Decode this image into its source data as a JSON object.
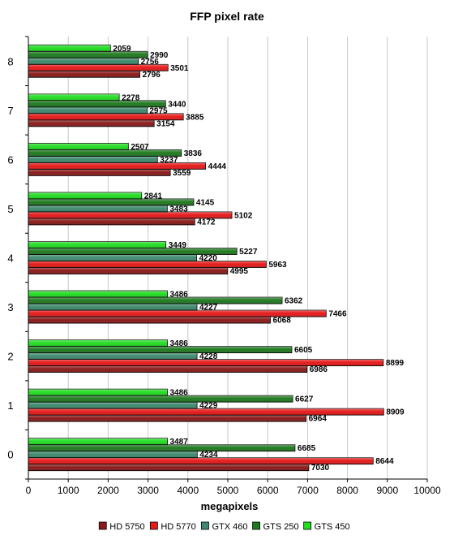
{
  "chart_data": {
    "type": "bar",
    "orientation": "horizontal",
    "title": "FFP pixel rate",
    "xlabel": "megapixels",
    "ylabel": "",
    "xlim": [
      0,
      10000
    ],
    "x_ticks": [
      0,
      1000,
      2000,
      3000,
      4000,
      5000,
      6000,
      7000,
      8000,
      9000,
      10000
    ],
    "categories": [
      "0",
      "1",
      "2",
      "3",
      "4",
      "5",
      "6",
      "7",
      "8"
    ],
    "grid": true,
    "legend_position": "bottom",
    "series": [
      {
        "name": "HD 5750",
        "color": "#8b1a1a",
        "values": [
          7030,
          6964,
          6986,
          6068,
          4995,
          4172,
          3559,
          3154,
          2796
        ]
      },
      {
        "name": "HD 5770",
        "color": "#e61919",
        "values": [
          8644,
          8909,
          8899,
          7466,
          5963,
          5102,
          4444,
          3885,
          3501
        ]
      },
      {
        "name": "GTX 460",
        "color": "#3f8a6e",
        "values": [
          4234,
          4229,
          4228,
          4227,
          4220,
          3483,
          3237,
          2975,
          2756
        ]
      },
      {
        "name": "GTS 250",
        "color": "#1f7a1f",
        "values": [
          6685,
          6627,
          6605,
          6362,
          5227,
          4145,
          3836,
          3440,
          2990
        ]
      },
      {
        "name": "GTS 450",
        "color": "#22dd22",
        "values": [
          3487,
          3486,
          3486,
          3486,
          3449,
          2841,
          2507,
          2278,
          2059
        ]
      }
    ]
  }
}
